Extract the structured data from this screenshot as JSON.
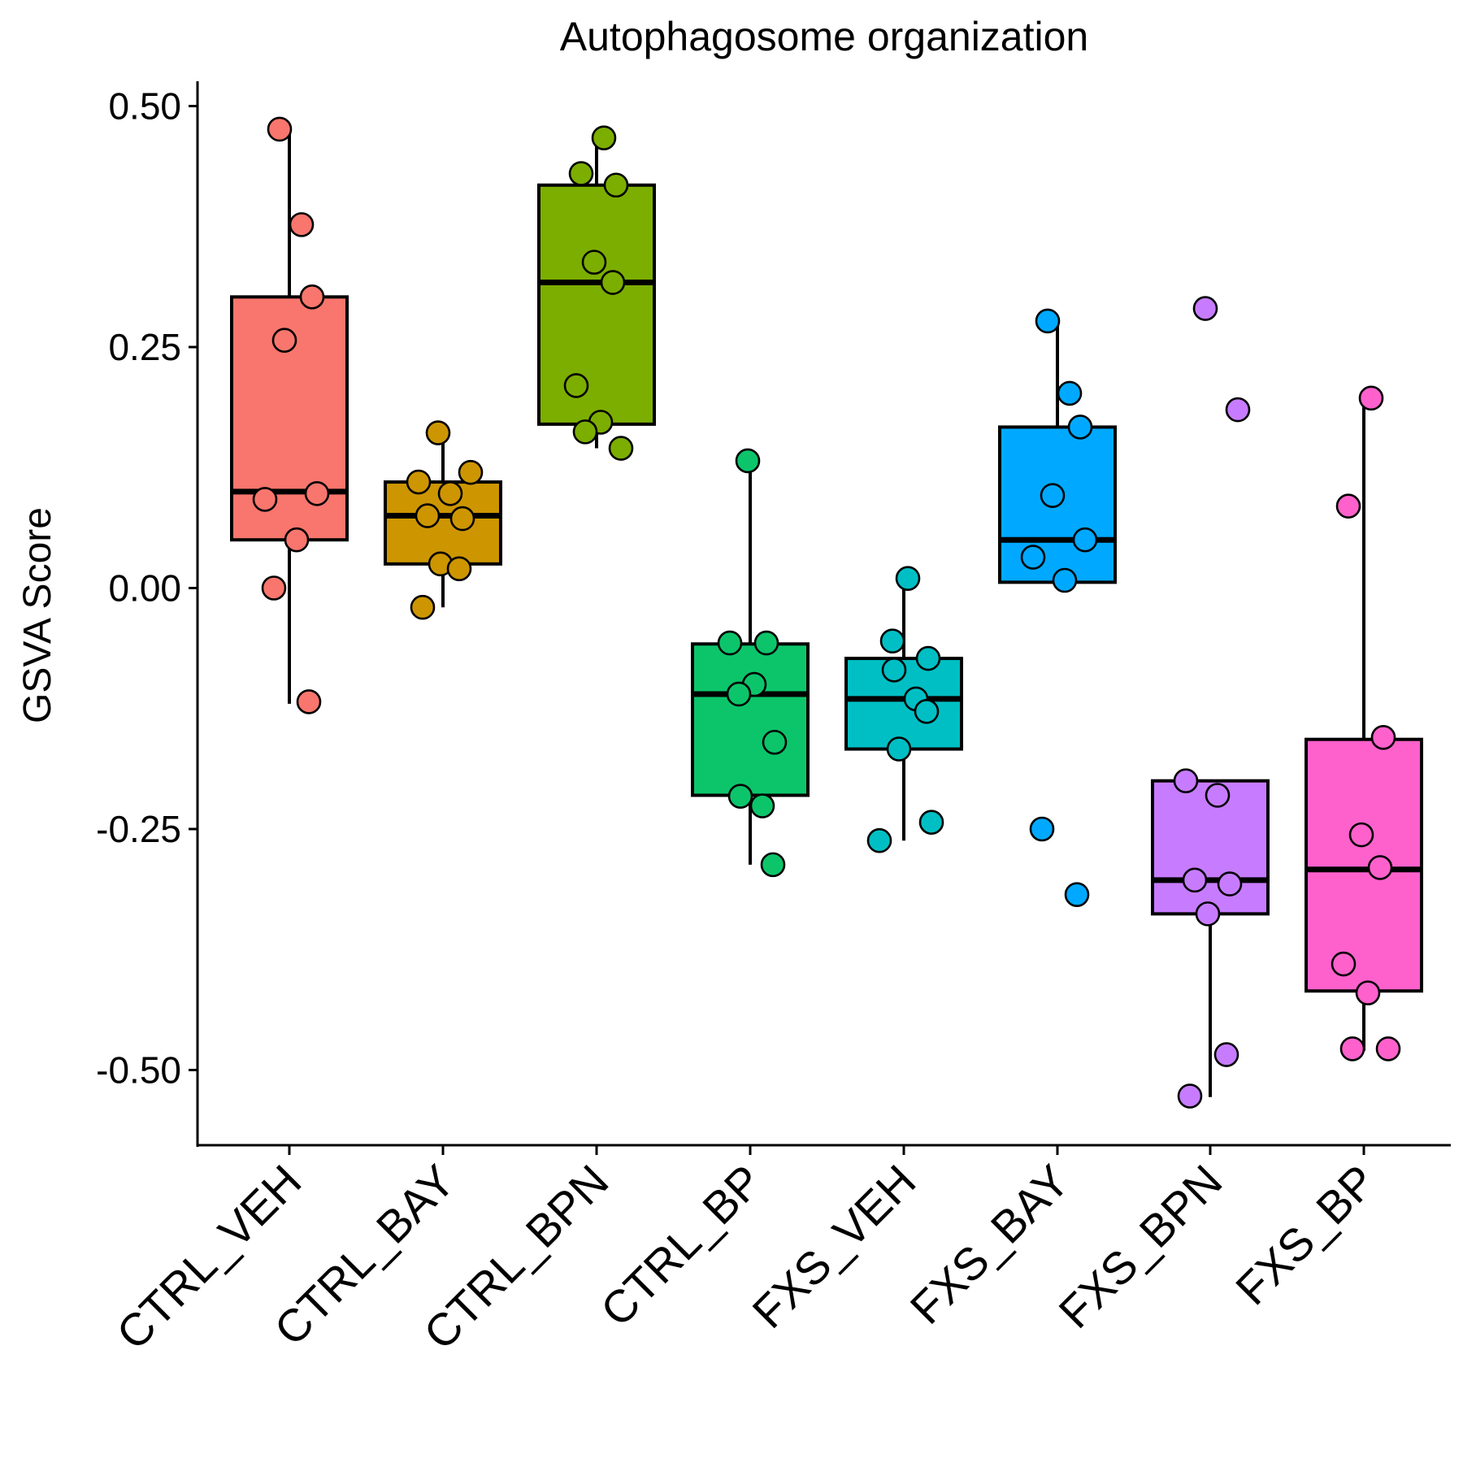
{
  "chart_data": {
    "type": "box",
    "title": "Autophagosome organization",
    "xlabel": "",
    "ylabel": "GSVA Score",
    "ylim": [
      -0.575,
      0.525
    ],
    "yticks": [
      0.5,
      0.25,
      0.0,
      -0.25,
      -0.5
    ],
    "ytick_labels": [
      "0.50",
      "0.25",
      "0.00",
      "-0.25",
      "-0.50"
    ],
    "categories": [
      "CTRL_VEH",
      "CTRL_BAY",
      "CTRL_BPN",
      "CTRL_BP",
      "FXS_VEH",
      "FXS_BAY",
      "FXS_BPN",
      "FXS_BP"
    ],
    "grid": false,
    "legend": "none",
    "groups": [
      {
        "name": "CTRL_VEH",
        "color": "#F8766D",
        "box": {
          "q1": 0.05,
          "median": 0.1,
          "q3": 0.302,
          "whisker_low": -0.12,
          "whisker_high": 0.474
        },
        "points": [
          0.476,
          0.377,
          0.302,
          0.257,
          0.098,
          0.092,
          0.05,
          0.0,
          -0.118
        ]
      },
      {
        "name": "CTRL_BAY",
        "color": "#CD9600",
        "box": {
          "q1": 0.025,
          "median": 0.075,
          "q3": 0.11,
          "whisker_low": -0.02,
          "whisker_high": 0.16
        },
        "points": [
          0.161,
          0.12,
          0.11,
          0.098,
          0.075,
          0.072,
          0.025,
          0.02,
          -0.02
        ]
      },
      {
        "name": "CTRL_BPN",
        "color": "#7CAE00",
        "box": {
          "q1": 0.17,
          "median": 0.317,
          "q3": 0.418,
          "whisker_low": 0.145,
          "whisker_high": 0.466
        },
        "points": [
          0.467,
          0.43,
          0.418,
          0.338,
          0.317,
          0.21,
          0.172,
          0.162,
          0.145
        ]
      },
      {
        "name": "CTRL_BP",
        "color": "#0CC56A",
        "box": {
          "q1": -0.215,
          "median": -0.11,
          "q3": -0.058,
          "whisker_low": -0.287,
          "whisker_high": 0.132
        },
        "points": [
          0.132,
          -0.057,
          -0.057,
          -0.1,
          -0.11,
          -0.16,
          -0.216,
          -0.226,
          -0.287
        ]
      },
      {
        "name": "FXS_VEH",
        "color": "#00BFC4",
        "box": {
          "q1": -0.167,
          "median": -0.115,
          "q3": -0.073,
          "whisker_low": -0.262,
          "whisker_high": 0.008
        },
        "points": [
          0.01,
          -0.055,
          -0.073,
          -0.085,
          -0.115,
          -0.128,
          -0.167,
          -0.243,
          -0.262
        ]
      },
      {
        "name": "FXS_BAY",
        "color": "#00A9FF",
        "box": {
          "q1": 0.006,
          "median": 0.05,
          "q3": 0.167,
          "whisker_low": 0.006,
          "whisker_high": 0.275
        },
        "points": [
          0.277,
          0.202,
          0.167,
          0.096,
          0.05,
          0.032,
          0.008,
          -0.25,
          -0.318
        ]
      },
      {
        "name": "FXS_BPN",
        "color": "#C77CFF",
        "box": {
          "q1": -0.338,
          "median": -0.303,
          "q3": -0.2,
          "whisker_low": -0.528,
          "whisker_high": -0.2
        },
        "points": [
          0.29,
          0.185,
          -0.2,
          -0.215,
          -0.303,
          -0.307,
          -0.338,
          -0.484,
          -0.527
        ]
      },
      {
        "name": "FXS_BP",
        "color": "#FF61CC",
        "box": {
          "q1": -0.418,
          "median": -0.292,
          "q3": -0.157,
          "whisker_low": -0.48,
          "whisker_high": 0.197
        },
        "points": [
          0.197,
          0.085,
          -0.155,
          -0.256,
          -0.29,
          -0.39,
          -0.42,
          -0.478,
          -0.478
        ]
      }
    ]
  }
}
